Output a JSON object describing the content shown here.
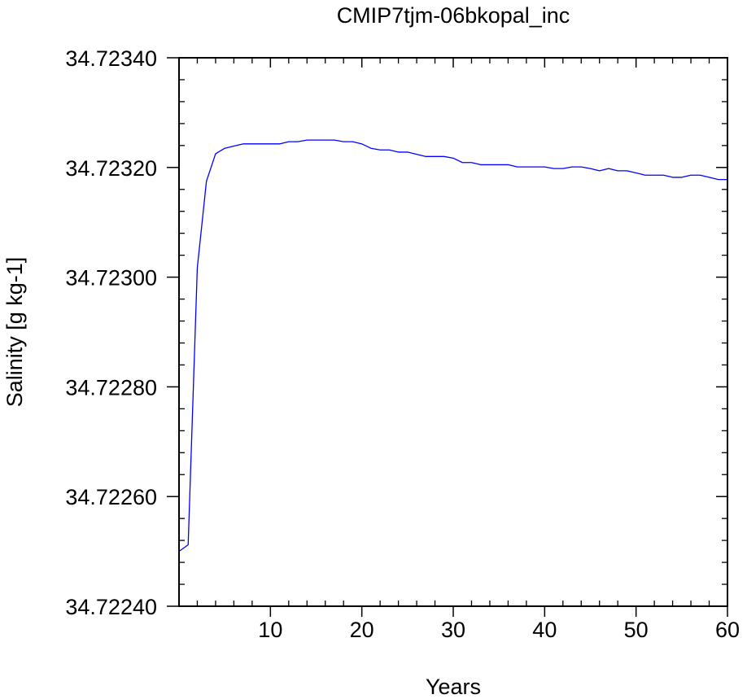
{
  "chart_data": {
    "type": "line",
    "title": "CMIP7tjm-06bkopal_inc",
    "xlabel": "Years",
    "ylabel": "Salinity [g kg-1]",
    "xlim": [
      0,
      60
    ],
    "ylim": [
      34.7224,
      34.7234
    ],
    "x_ticks": [
      10,
      20,
      30,
      40,
      50,
      60
    ],
    "x_tick_labels": [
      "10",
      "20",
      "30",
      "40",
      "50",
      "60"
    ],
    "y_ticks": [
      34.7224,
      34.7226,
      34.7228,
      34.723,
      34.7232,
      34.7234
    ],
    "y_tick_labels": [
      "34.72240",
      "34.72260",
      "34.72280",
      "34.72300",
      "34.72320",
      "34.72340"
    ],
    "grid": false,
    "line_color": "#0000ff",
    "series": [
      {
        "x": [
          0,
          1,
          2,
          3,
          4,
          5,
          6,
          7,
          8,
          9,
          10,
          11,
          12,
          13,
          14,
          15,
          16,
          17,
          18,
          19,
          20,
          21,
          22,
          23,
          24,
          25,
          26,
          27,
          28,
          29,
          30,
          31,
          32,
          33,
          34,
          35,
          36,
          37,
          38,
          39,
          40,
          41,
          42,
          43,
          44,
          45,
          46,
          47,
          48,
          49,
          50,
          51,
          52,
          53,
          54,
          55,
          56,
          57,
          58,
          59,
          60
        ],
        "values": [
          34.7225,
          34.722512,
          34.723017,
          34.723175,
          34.723225,
          34.723235,
          34.723239,
          34.723243,
          34.723243,
          34.723243,
          34.723243,
          34.723243,
          34.723247,
          34.723247,
          34.72325,
          34.72325,
          34.72325,
          34.72325,
          34.723247,
          34.723247,
          34.723243,
          34.723235,
          34.723232,
          34.723232,
          34.723228,
          34.723228,
          34.723224,
          34.72322,
          34.72322,
          34.72322,
          34.723217,
          34.723209,
          34.723209,
          34.723205,
          34.723205,
          34.723205,
          34.723205,
          34.723201,
          34.723201,
          34.723201,
          34.723201,
          34.723198,
          34.723198,
          34.723201,
          34.723201,
          34.723198,
          34.723194,
          34.723198,
          34.723194,
          34.723194,
          34.72319,
          34.723186,
          34.723186,
          34.723186,
          34.723182,
          34.723182,
          34.723186,
          34.723186,
          34.723182,
          34.723178,
          34.723178
        ]
      }
    ]
  }
}
